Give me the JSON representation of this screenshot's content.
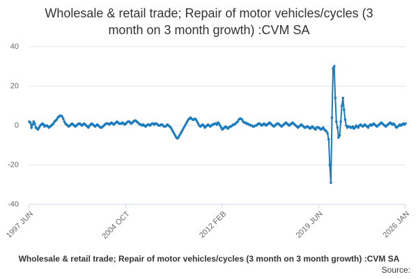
{
  "chart_data": {
    "type": "line",
    "title_lines": [
      "Wholesale & retail trade; Repair of motor vehicles/cycles (3",
      "month on 3 month growth) :CVM SA"
    ],
    "footer_title": "Wholesale & retail trade; Repair of motor vehicles/cycles (3 month on 3 month growth) :CVM SA",
    "source": "Source:",
    "categories": [
      "1997 JUN",
      null,
      null,
      null,
      null,
      null,
      null,
      null,
      null,
      null,
      null,
      null,
      null,
      null,
      null,
      null,
      null,
      null,
      null,
      null,
      null,
      null,
      null,
      null,
      null,
      null,
      null,
      null,
      null,
      null,
      null,
      null,
      null,
      null,
      null,
      null,
      null,
      null,
      null,
      null,
      null,
      null,
      null,
      null,
      null,
      null,
      null,
      null,
      null,
      null,
      null,
      null,
      null,
      null,
      null,
      null,
      null,
      null,
      null,
      null,
      null,
      null,
      null,
      null,
      null,
      null,
      null,
      null,
      null,
      null,
      null,
      null,
      null,
      null,
      null,
      null,
      null,
      null,
      null,
      null,
      null,
      null,
      null,
      null,
      null,
      null,
      null,
      null,
      "2004 OCT",
      null,
      null,
      null,
      null,
      null,
      null,
      null,
      null,
      null,
      null,
      null,
      null,
      null,
      null,
      null,
      null,
      null,
      null,
      null,
      null,
      null,
      null,
      null,
      null,
      null,
      null,
      null,
      null,
      null,
      null,
      null,
      null,
      null,
      null,
      null,
      null,
      null,
      null,
      null,
      null,
      null,
      null,
      null,
      null,
      null,
      null,
      null,
      null,
      null,
      null,
      null,
      null,
      null,
      null,
      null,
      null,
      null,
      null,
      null,
      null,
      null,
      null,
      null,
      null,
      null,
      null,
      null,
      null,
      null,
      null,
      null,
      null,
      null,
      null,
      null,
      null,
      null,
      null,
      null,
      null,
      null,
      null,
      null,
      null,
      null,
      null,
      null,
      "2012 FEB",
      null,
      null,
      null,
      null,
      null,
      null,
      null,
      null,
      null,
      null,
      null,
      null,
      null,
      null,
      null,
      null,
      null,
      null,
      null,
      null,
      null,
      null,
      null,
      null,
      null,
      null,
      null,
      null,
      null,
      null,
      null,
      null,
      null,
      null,
      null,
      null,
      null,
      null,
      null,
      null,
      null,
      null,
      null,
      null,
      null,
      null,
      null,
      null,
      null,
      null,
      null,
      null,
      null,
      null,
      null,
      null,
      null,
      null,
      null,
      null,
      null,
      null,
      null,
      null,
      null,
      null,
      null,
      null,
      null,
      null,
      null,
      null,
      null,
      null,
      null,
      null,
      null,
      null,
      null,
      null,
      null,
      null,
      null,
      null,
      null,
      null,
      null,
      "2019 JUN",
      null,
      null,
      null,
      null,
      null,
      null,
      null,
      null,
      null,
      null,
      null,
      null,
      null,
      null,
      null,
      null,
      null,
      null,
      null,
      null,
      null,
      null,
      null,
      null,
      null,
      null,
      null,
      null,
      null,
      null,
      null,
      null,
      null,
      null,
      null,
      null,
      null,
      null,
      null,
      null,
      null,
      null,
      null,
      null,
      null,
      null,
      null,
      null,
      null,
      null,
      null,
      null,
      null,
      null,
      null,
      null,
      null,
      null,
      null,
      null,
      null,
      null,
      null,
      null,
      null,
      null,
      null,
      null,
      null,
      null,
      null,
      null,
      null,
      null,
      null,
      null,
      null,
      null,
      "2026 JAN"
    ],
    "series": [
      {
        "name": "Wholesale & retail trade; Repair of motor vehicles/cycles (3 month on 3 month growth) :CVM SA",
        "color": "#1a7bbf",
        "values": [
          2,
          1.5,
          -1,
          0.5,
          2,
          1,
          -1,
          -1.5,
          -2,
          -1,
          0,
          0.5,
          1,
          0.5,
          -0.5,
          0,
          0,
          -0.5,
          -1,
          -0.5,
          0,
          0.5,
          1,
          2,
          2.5,
          3,
          4,
          4.5,
          5,
          5,
          4.5,
          3.5,
          2,
          1,
          0.5,
          0,
          -0.5,
          0,
          0.5,
          1,
          0.5,
          0,
          -0.5,
          0,
          0.5,
          1,
          1,
          0.5,
          0,
          0.5,
          1,
          0.5,
          0,
          -0.5,
          -1,
          0,
          0.5,
          1,
          0.5,
          0,
          -0.5,
          0,
          0.5,
          0,
          -0.5,
          -1,
          -1,
          -0.5,
          0,
          0.5,
          1,
          1,
          1,
          0.5,
          1,
          1.5,
          1,
          0.5,
          1,
          1.5,
          2,
          1.5,
          1,
          1,
          1,
          1.5,
          1,
          0.5,
          1,
          1.5,
          2,
          2,
          1.5,
          1,
          1.5,
          2,
          2.5,
          2.5,
          2,
          1.5,
          1,
          0.5,
          0.5,
          0,
          0.5,
          0,
          -0.5,
          0,
          0.5,
          0.5,
          0,
          0.5,
          1,
          1,
          0.5,
          1,
          1,
          0.5,
          0,
          0,
          0.5,
          0.5,
          0,
          -0.5,
          -0.5,
          0,
          0.5,
          0,
          -0.5,
          -1,
          -2,
          -3,
          -4,
          -5,
          -6,
          -6.5,
          -6,
          -5,
          -4,
          -3,
          -2,
          -1,
          0,
          1,
          2,
          3,
          3.5,
          4,
          3.5,
          3,
          3,
          3.5,
          3,
          2,
          1,
          0,
          -0.5,
          0,
          0.5,
          0,
          -1,
          -0.5,
          0,
          0.5,
          0,
          -0.5,
          0,
          0.5,
          0.5,
          1,
          1,
          0.5,
          1.5,
          1,
          0,
          -1,
          -2,
          -1.5,
          -1,
          -0.5,
          -1,
          -1.5,
          -1,
          -0.5,
          -0.5,
          0,
          0.5,
          0.5,
          1,
          1.5,
          2,
          3,
          3.5,
          3.5,
          3,
          2,
          1.5,
          1.5,
          1,
          1,
          0.5,
          0.5,
          0,
          0,
          -0.5,
          -0.5,
          0,
          0,
          0.5,
          1,
          1,
          0.5,
          0,
          0.5,
          1,
          0.5,
          0,
          0.5,
          1,
          1.5,
          1,
          0.5,
          0,
          -0.5,
          0,
          0.5,
          1,
          1,
          0.5,
          0,
          -0.5,
          0,
          0.5,
          1,
          1.5,
          1,
          0.5,
          0,
          0.5,
          1,
          1.5,
          1,
          0.5,
          0,
          -0.5,
          -1,
          -0.5,
          0,
          0.5,
          0,
          -0.5,
          -1,
          -1,
          -0.5,
          -0.5,
          -1,
          -1.5,
          -1,
          -0.5,
          -1,
          -1.5,
          -2,
          -1,
          -1,
          -1,
          -1.5,
          -2,
          -1.5,
          -1,
          -2,
          -2.5,
          -3,
          -4,
          -7,
          -20,
          -29,
          4,
          29,
          30,
          14,
          2,
          -1,
          -6,
          -5,
          2,
          10,
          14,
          8,
          3,
          0,
          -1,
          -0.5,
          -0.5,
          -1,
          -1,
          -0.5,
          -1.5,
          -1,
          0,
          -0.5,
          -1,
          0,
          0.5,
          0,
          -0.5,
          0,
          0.5,
          0,
          -0.5,
          -1,
          0,
          0.5,
          0,
          0.5,
          1,
          0.5,
          0,
          -0.5,
          0,
          0.5,
          1,
          1.5,
          1,
          0.5,
          0,
          -0.5,
          0,
          0.5,
          1,
          1.5,
          1,
          0.5,
          1,
          0.5,
          -0.5,
          -1,
          -0.5,
          0,
          0.5,
          0,
          0.5,
          1,
          0.5,
          1
        ]
      }
    ],
    "ylim": [
      -40,
      40
    ],
    "yticks": [
      -40,
      -20,
      0,
      20,
      40
    ],
    "grid": true
  }
}
